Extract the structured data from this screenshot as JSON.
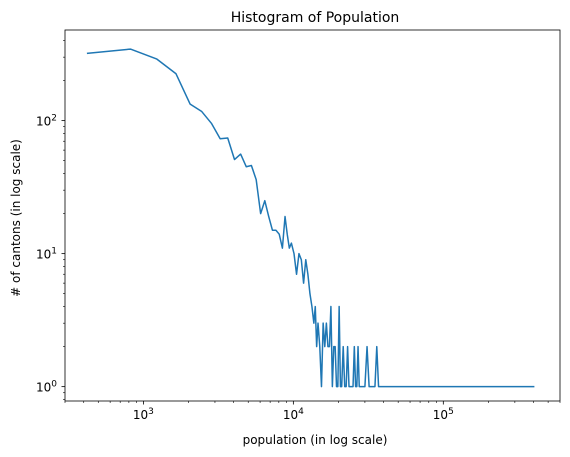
{
  "chart_data": {
    "type": "line",
    "title": "Histogram of Population",
    "xlabel": "population (in log scale)",
    "ylabel": "# of cantons (in log scale)",
    "xscale": "log",
    "yscale": "log",
    "xlim": [
      300,
      600000
    ],
    "ylim": [
      0.78,
      480
    ],
    "grid": false,
    "color": "#1f77b4",
    "x_ticks": [
      {
        "value": 1000,
        "base": "10",
        "exp": "3"
      },
      {
        "value": 10000,
        "base": "10",
        "exp": "4"
      },
      {
        "value": 100000,
        "base": "10",
        "exp": "5"
      }
    ],
    "y_ticks": [
      {
        "value": 1,
        "base": "10",
        "exp": "0"
      },
      {
        "value": 10,
        "base": "10",
        "exp": "1"
      },
      {
        "value": 100,
        "base": "10",
        "exp": "2"
      }
    ],
    "series": [
      {
        "points": [
          [
            420,
            320
          ],
          [
            820,
            345
          ],
          [
            1230,
            290
          ],
          [
            1650,
            225
          ],
          [
            2050,
            133
          ],
          [
            2450,
            117
          ],
          [
            2850,
            95
          ],
          [
            3250,
            73
          ],
          [
            3650,
            74
          ],
          [
            4050,
            51
          ],
          [
            4450,
            56
          ],
          [
            4850,
            45
          ],
          [
            5250,
            46
          ],
          [
            5650,
            36
          ],
          [
            6050,
            20
          ],
          [
            6450,
            25
          ],
          [
            6850,
            19
          ],
          [
            7250,
            15
          ],
          [
            7650,
            15
          ],
          [
            8050,
            14
          ],
          [
            8450,
            11
          ],
          [
            8800,
            19
          ],
          [
            9100,
            14
          ],
          [
            9400,
            11
          ],
          [
            9700,
            12
          ],
          [
            10100,
            10
          ],
          [
            10500,
            7
          ],
          [
            10900,
            10
          ],
          [
            11300,
            9
          ],
          [
            11700,
            6
          ],
          [
            12100,
            9
          ],
          [
            12500,
            7
          ],
          [
            12900,
            5
          ],
          [
            13300,
            4
          ],
          [
            13700,
            3
          ],
          [
            14000,
            4
          ],
          [
            14300,
            2
          ],
          [
            14600,
            3
          ],
          [
            15000,
            2
          ],
          [
            15400,
            1
          ],
          [
            15800,
            3
          ],
          [
            16200,
            2
          ],
          [
            16600,
            3
          ],
          [
            17000,
            2
          ],
          [
            17400,
            2
          ],
          [
            17800,
            4
          ],
          [
            18200,
            1
          ],
          [
            18600,
            2
          ],
          [
            19000,
            2
          ],
          [
            19400,
            1
          ],
          [
            19800,
            1
          ],
          [
            20200,
            4
          ],
          [
            20600,
            1
          ],
          [
            21000,
            1
          ],
          [
            21500,
            2
          ],
          [
            22000,
            1
          ],
          [
            22500,
            1
          ],
          [
            23000,
            2
          ],
          [
            23500,
            1
          ],
          [
            24000,
            1
          ],
          [
            24500,
            1
          ],
          [
            25000,
            1
          ],
          [
            25500,
            2
          ],
          [
            26000,
            1
          ],
          [
            26500,
            1
          ],
          [
            27000,
            2
          ],
          [
            27500,
            1
          ],
          [
            28000,
            1
          ],
          [
            29000,
            1
          ],
          [
            30000,
            1
          ],
          [
            31000,
            2
          ],
          [
            32000,
            1
          ],
          [
            33000,
            1
          ],
          [
            34000,
            1
          ],
          [
            35000,
            1
          ],
          [
            36000,
            2
          ],
          [
            37000,
            1
          ],
          [
            38000,
            1
          ],
          [
            40000,
            1
          ],
          [
            42000,
            1
          ],
          [
            44000,
            1
          ],
          [
            46000,
            1
          ],
          [
            52000,
            1
          ],
          [
            58000,
            1
          ],
          [
            64000,
            1
          ],
          [
            70000,
            1
          ],
          [
            76000,
            1
          ],
          [
            80000,
            1
          ],
          [
            84000,
            1
          ],
          [
            90000,
            1
          ],
          [
            100000,
            1
          ],
          [
            110000,
            1
          ],
          [
            120000,
            1
          ],
          [
            130000,
            1
          ],
          [
            140000,
            1
          ],
          [
            150000,
            1
          ],
          [
            160000,
            1
          ],
          [
            170000,
            1
          ],
          [
            180000,
            1
          ],
          [
            190000,
            1
          ],
          [
            200000,
            1
          ],
          [
            215000,
            1
          ],
          [
            230000,
            1
          ],
          [
            250000,
            1
          ],
          [
            270000,
            1
          ],
          [
            290000,
            1
          ],
          [
            310000,
            1
          ],
          [
            330000,
            1
          ],
          [
            350000,
            1
          ],
          [
            370000,
            1
          ],
          [
            390000,
            1
          ],
          [
            405000,
            1
          ]
        ]
      }
    ]
  }
}
